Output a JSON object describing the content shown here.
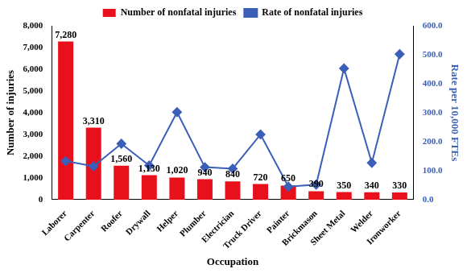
{
  "chart_data": {
    "type": "bar",
    "x_label": "Occupation",
    "y_label": "Number of injuries",
    "y2_label": "Rate per 10,000 FTEs",
    "categories": [
      "Laborer",
      "Carpenter",
      "Roofer",
      "Drywall",
      "Helper",
      "Plumber",
      "Electrician",
      "Truck Driver",
      "Painter",
      "Brickmason",
      "Sheet Metal",
      "Welder",
      "Ironworker"
    ],
    "series": [
      {
        "name": "Number of nonfatal injuries",
        "type": "bar",
        "color": "#e8101a",
        "values": [
          7280,
          3310,
          1560,
          1130,
          1020,
          940,
          840,
          720,
          650,
          390,
          350,
          340,
          330
        ],
        "data_labels": true,
        "value_labels": [
          "7,280",
          "3,310",
          "1,560",
          "1,130",
          "1,020",
          "940",
          "840",
          "720",
          "650",
          "390",
          "350",
          "340",
          "330"
        ]
      },
      {
        "name": "Rate of nonfatal injuries",
        "type": "line",
        "color": "#3b5fb8",
        "marker": "diamond",
        "axis": "y2",
        "values": [
          133,
          115,
          193,
          118,
          302,
          112,
          107,
          225,
          45,
          52,
          453,
          127,
          502
        ]
      }
    ],
    "ylim": [
      0,
      8000
    ],
    "yticks": [
      0,
      {
        "value": 1000,
        "label": "1,000"
      },
      {
        "value": 2000,
        "label": "2,000"
      },
      {
        "value": 3000,
        "label": "3,000"
      },
      {
        "value": 4000,
        "label": "4,000"
      },
      {
        "value": 5000,
        "label": "5,000"
      },
      {
        "value": 6000,
        "label": "6,000"
      },
      {
        "value": 7000,
        "label": "7,000"
      },
      {
        "value": 8000,
        "label": "8,000"
      }
    ],
    "y2lim": [
      0,
      600
    ],
    "y2ticks": [
      {
        "value": 0,
        "label": "0.0"
      },
      {
        "value": 100,
        "label": "100.0"
      },
      {
        "value": 200,
        "label": "200.0"
      },
      {
        "value": 300,
        "label": "300.0"
      },
      {
        "value": 400,
        "label": "400.0"
      },
      {
        "value": 500,
        "label": "500.0"
      },
      {
        "value": 600,
        "label": "600.0"
      }
    ],
    "legend": "top",
    "grid": false
  }
}
